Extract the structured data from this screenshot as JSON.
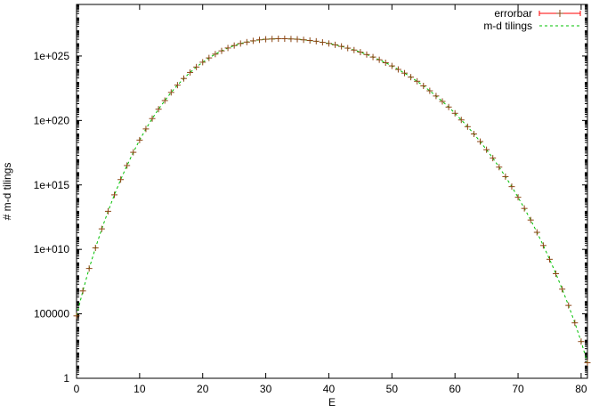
{
  "chart_data": {
    "type": "scatter",
    "xlabel": "E",
    "ylabel": "# m-d tilings",
    "x_range": [
      0,
      81
    ],
    "y_range": [
      1,
      1e+29
    ],
    "y_scale": "log",
    "x_ticks": [
      0,
      10,
      20,
      30,
      40,
      50,
      60,
      70,
      80
    ],
    "x_tick_labels": [
      "0",
      "10",
      "20",
      "30",
      "40",
      "50",
      "60",
      "70",
      "80"
    ],
    "y_ticks": [
      1,
      100000,
      10000000000.0,
      1000000000000000.0,
      1e+20,
      1e+25
    ],
    "y_tick_labels": [
      "1",
      "100000",
      "1e+010",
      "1e+015",
      "1e+020",
      "1e+025"
    ],
    "grid": false,
    "legend_position": "top-right",
    "series": [
      {
        "name": "errorbar",
        "style": "points with error bars",
        "color": "#ff0000",
        "x": [
          0,
          1,
          2,
          3,
          4,
          5,
          6,
          7,
          8,
          9,
          10,
          11,
          12,
          13,
          14,
          15,
          16,
          17,
          18,
          19,
          20,
          21,
          22,
          23,
          24,
          25,
          26,
          27,
          28,
          29,
          30,
          31,
          32,
          33,
          34,
          35,
          36,
          37,
          38,
          39,
          40,
          41,
          42,
          43,
          44,
          45,
          46,
          47,
          48,
          49,
          50,
          51,
          52,
          53,
          54,
          55,
          56,
          57,
          58,
          59,
          60,
          61,
          62,
          63,
          64,
          65,
          66,
          67,
          68,
          69,
          70,
          71,
          72,
          73,
          74,
          75,
          76,
          77,
          78,
          79,
          80,
          81
        ],
        "y": [
          70000.0,
          6000000.0,
          330000000.0,
          13000000000.0,
          390000000000.0,
          9000000000000.0,
          170000000000000.0,
          2600000000000000.0,
          3.2e+16,
          3.4e+17,
          3e+18,
          2.2e+19,
          1.4e+20,
          7.5e+20,
          3.5e+21,
          1.5e+22,
          5.5e+22,
          1.8e+23,
          5.3e+23,
          1.4e+24,
          3.3e+24,
          7.1e+24,
          1.4e+25,
          2.5e+25,
          4.2e+25,
          6.5e+25,
          9.3e+25,
          1.2e+26,
          1.5e+26,
          1.8e+26,
          2e+26,
          2.1e+26,
          2.2e+26,
          2.2e+26,
          2.1e+26,
          2e+26,
          1.8e+26,
          1.6e+26,
          1.4e+26,
          1.15e+26,
          9.4e+25,
          7.4e+25,
          5.6e+25,
          4.1e+25,
          2.9e+25,
          2e+25,
          1.3e+25,
          8.3e+24,
          5.1e+24,
          3e+24,
          1.7e+24,
          9.1e+23,
          4.7e+23,
          2.3e+23,
          1.1e+23,
          4.8e+22,
          2e+22,
          7.9e+21,
          3e+21,
          1.1e+21,
          3.6e+20,
          1.1e+20,
          3.3e+19,
          9e+18,
          2.3e+18,
          5.4e+17,
          1.2e+17,
          2.4e+16,
          4400000000000000.0,
          740000000000000.0,
          110000000000000.0,
          15000000000000.0,
          1900000000000.0,
          210000000000.0,
          20000000000.0,
          1700000000.0,
          130000000.0,
          8200000.0,
          450000.0,
          20000.0,
          710.0,
          16.0
        ]
      },
      {
        "name": "m-d tilings",
        "style": "dashed line",
        "color": "#00c000"
      }
    ]
  }
}
